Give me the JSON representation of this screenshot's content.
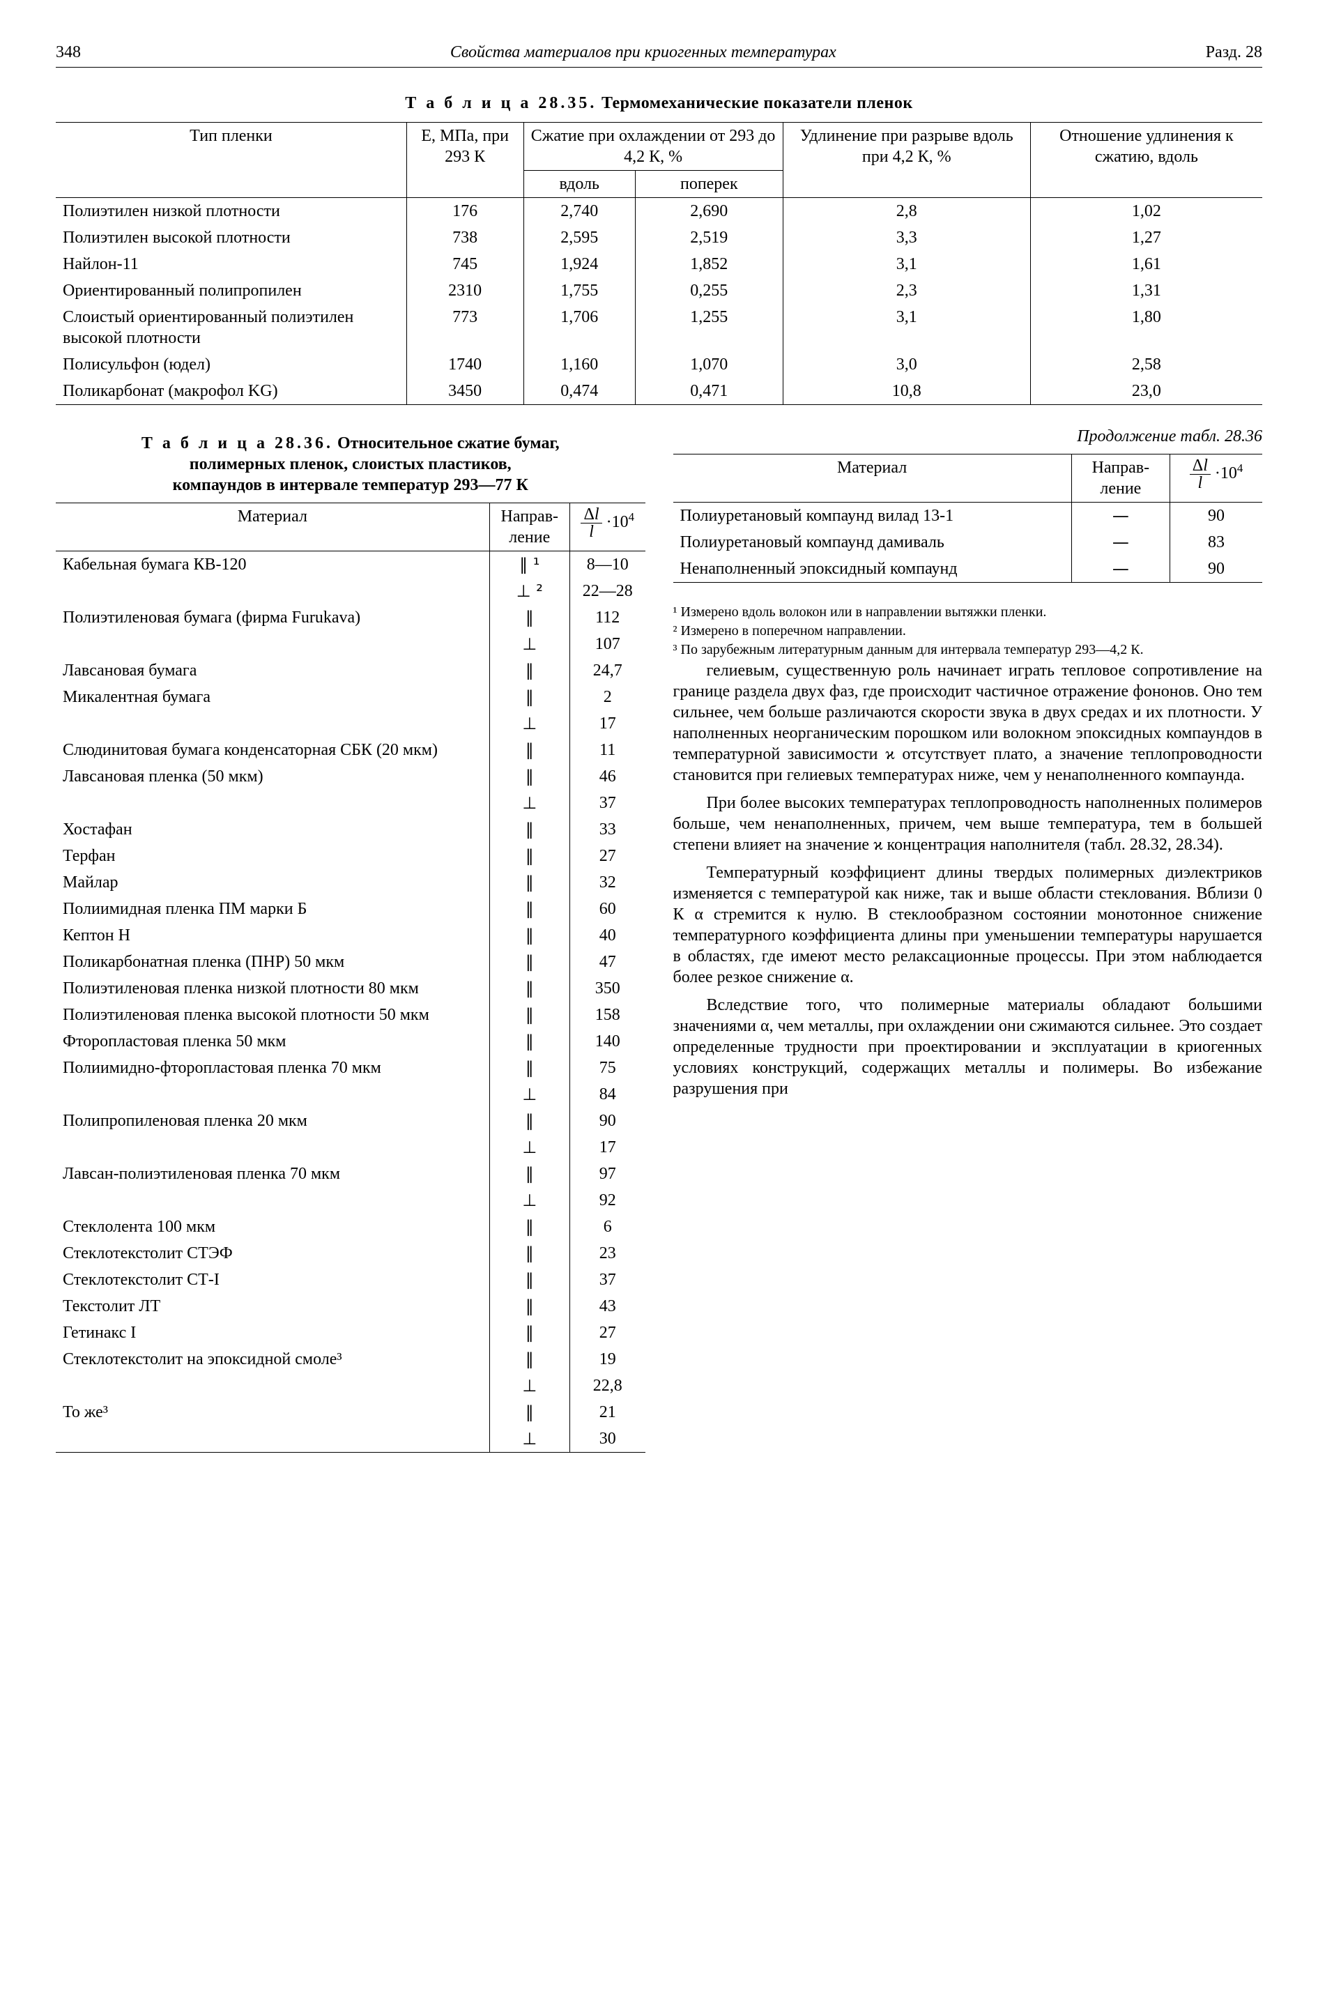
{
  "header": {
    "page_number": "348",
    "running_title": "Свойства материалов при криогенных температурах",
    "section": "Разд. 28"
  },
  "table35": {
    "caption_prefix": "Т а б л и ц а 28.35.",
    "caption": "Термомеханические показатели пленок",
    "head": {
      "type": "Тип пленки",
      "E": "E, МПа, при 293 К",
      "shrink": "Сжатие при охлаждении от 293 до 4,2 К, %",
      "along": "вдоль",
      "across": "поперек",
      "elong": "Удлинение при разрыве вдоль при 4,2 К, %",
      "ratio": "Отношение удлинения к сжатию, вдоль"
    },
    "rows": [
      {
        "name": "Полиэтилен низкой плотности",
        "E": "176",
        "a": "2,740",
        "b": "2,690",
        "c": "2,8",
        "d": "1,02"
      },
      {
        "name": "Полиэтилен высокой плотности",
        "E": "738",
        "a": "2,595",
        "b": "2,519",
        "c": "3,3",
        "d": "1,27"
      },
      {
        "name": "Найлон-11",
        "E": "745",
        "a": "1,924",
        "b": "1,852",
        "c": "3,1",
        "d": "1,61"
      },
      {
        "name": "Ориентированный полипропилен",
        "E": "2310",
        "a": "1,755",
        "b": "0,255",
        "c": "2,3",
        "d": "1,31"
      },
      {
        "name": "Слоистый ориентированный полиэтилен высокой плотности",
        "E": "773",
        "a": "1,706",
        "b": "1,255",
        "c": "3,1",
        "d": "1,80"
      },
      {
        "name": "Полисульфон (юдел)",
        "E": "1740",
        "a": "1,160",
        "b": "1,070",
        "c": "3,0",
        "d": "2,58"
      },
      {
        "name": "Поликарбонат (макрофол KG)",
        "E": "3450",
        "a": "0,474",
        "b": "0,471",
        "c": "10,8",
        "d": "23,0"
      }
    ]
  },
  "table36": {
    "caption_prefix": "Т а б л и ц а 28.36.",
    "caption_lines": [
      "Относительное сжатие бумаг,",
      "полимерных пленок, слоистых пластиков,",
      "компаундов в интервале температур 293—77 К"
    ],
    "continuation": "Продолжение табл. 28.36",
    "head": {
      "material": "Материал",
      "dir": "Направ-\nление",
      "val_html": "<span class='frac'><span class='top'>Δ<i>l</i></span><span class='bot'><i>l</i></span></span> ·10<sup>4</sup>"
    },
    "rows_left": [
      {
        "name": "Кабельная бумага КВ-120",
        "dir": "∥ ¹",
        "val": "8—10"
      },
      {
        "name": "",
        "dir": "⊥ ²",
        "val": "22—28"
      },
      {
        "name": "Полиэтиленовая бумага (фирма Furukava)",
        "dir": "∥",
        "val": "112"
      },
      {
        "name": "",
        "dir": "⊥",
        "val": "107"
      },
      {
        "name": "Лавсановая бумага",
        "dir": "∥",
        "val": "24,7"
      },
      {
        "name": "Микалентная бумага",
        "dir": "∥",
        "val": "2"
      },
      {
        "name": "",
        "dir": "⊥",
        "val": "17"
      },
      {
        "name": "Слюдинитовая бумага конденсаторная СБК (20 мкм)",
        "dir": "∥",
        "val": "11"
      },
      {
        "name": "Лавсановая пленка (50 мкм)",
        "dir": "∥",
        "val": "46"
      },
      {
        "name": "",
        "dir": "⊥",
        "val": "37"
      },
      {
        "name": "Хостафан",
        "dir": "∥",
        "val": "33"
      },
      {
        "name": "Терфан",
        "dir": "∥",
        "val": "27"
      },
      {
        "name": "Майлар",
        "dir": "∥",
        "val": "32"
      },
      {
        "name": "Полиимидная пленка ПМ марки Б",
        "dir": "∥",
        "val": "60"
      },
      {
        "name": "Кептон Н",
        "dir": "∥",
        "val": "40"
      },
      {
        "name": "Поликарбонатная пленка (ПНР) 50 мкм",
        "dir": "∥",
        "val": "47"
      },
      {
        "name": "Полиэтиленовая пленка низкой плотности 80 мкм",
        "dir": "∥",
        "val": "350"
      },
      {
        "name": "Полиэтиленовая пленка высокой плотности 50 мкм",
        "dir": "∥",
        "val": "158"
      },
      {
        "name": "Фторопластовая пленка 50 мкм",
        "dir": "∥",
        "val": "140"
      },
      {
        "name": "Полиимидно-фторопластовая пленка 70 мкм",
        "dir": "∥",
        "val": "75"
      },
      {
        "name": "",
        "dir": "⊥",
        "val": "84"
      },
      {
        "name": "Полипропиленовая пленка 20 мкм",
        "dir": "∥",
        "val": "90"
      },
      {
        "name": "",
        "dir": "⊥",
        "val": "17"
      },
      {
        "name": "Лавсан-полиэтиленовая пленка 70 мкм",
        "dir": "∥",
        "val": "97"
      },
      {
        "name": "",
        "dir": "⊥",
        "val": "92"
      },
      {
        "name": "Стеклолента 100 мкм",
        "dir": "∥",
        "val": "6"
      },
      {
        "name": "Стеклотекстолит СТЭФ",
        "dir": "∥",
        "val": "23"
      },
      {
        "name": "Стеклотекстолит СТ-I",
        "dir": "∥",
        "val": "37"
      },
      {
        "name": "Текстолит ЛТ",
        "dir": "∥",
        "val": "43"
      },
      {
        "name": "Гетинакс I",
        "dir": "∥",
        "val": "27"
      },
      {
        "name": "Стеклотекстолит на эпоксидной смоле³",
        "dir": "∥",
        "val": "19"
      },
      {
        "name": "",
        "dir": "⊥",
        "val": "22,8"
      },
      {
        "name": "То же³",
        "dir": "∥",
        "val": "21"
      },
      {
        "name": "",
        "dir": "⊥",
        "val": "30"
      }
    ],
    "rows_right": [
      {
        "name": "Полиуретановый компаунд вилад 13-1",
        "dir": "—",
        "val": "90"
      },
      {
        "name": "Полиуретановый компаунд дамиваль",
        "dir": "—",
        "val": "83"
      },
      {
        "name": "Ненаполненный эпоксидный компаунд",
        "dir": "—",
        "val": "90"
      }
    ]
  },
  "footnotes": {
    "n1": "¹ Измерено вдоль волокон или в направлении вытяжки пленки.",
    "n2": "² Измерено в поперечном направлении.",
    "n3": "³ По зарубежным литературным данным для интервала температур 293—4,2 К."
  },
  "body": {
    "p1": "гелиевым, существенную роль начинает играть тепловое сопротивление на границе раздела двух фаз, где происходит частичное отражение фононов. Оно тем сильнее, чем больше различаются скорости звука в двух средах и их плотности. У наполненных неорганическим порошком или волокном эпоксидных компаундов в температурной зависимости ϰ отсутствует плато, а значение теплопроводности становится при гелиевых температурах ниже, чем у ненаполненного компаунда.",
    "p2": "При более высоких температурах теплопроводность наполненных полимеров больше, чем ненаполненных, причем, чем выше температура, тем в большей степени влияет на значение ϰ концентрация наполнителя (табл. 28.32, 28.34).",
    "p3": "Температурный коэффициент длины твердых полимерных диэлектриков изменяется с температурой как ниже, так и выше области стеклования. Вблизи 0 К α стремится к нулю. В стеклообразном состоянии монотонное снижение температурного коэффициента длины при уменьшении температуры нарушается в областях, где имеют место релаксационные процессы. При этом наблюдается более резкое снижение α.",
    "p4": "Вследствие того, что полимерные материалы обладают большими значениями α, чем металлы, при охлаждении они сжимаются сильнее. Это создает определенные трудности при проектировании и эксплуатации в криогенных условиях конструкций, содержащих металлы и полимеры. Во избежание разрушения при"
  }
}
